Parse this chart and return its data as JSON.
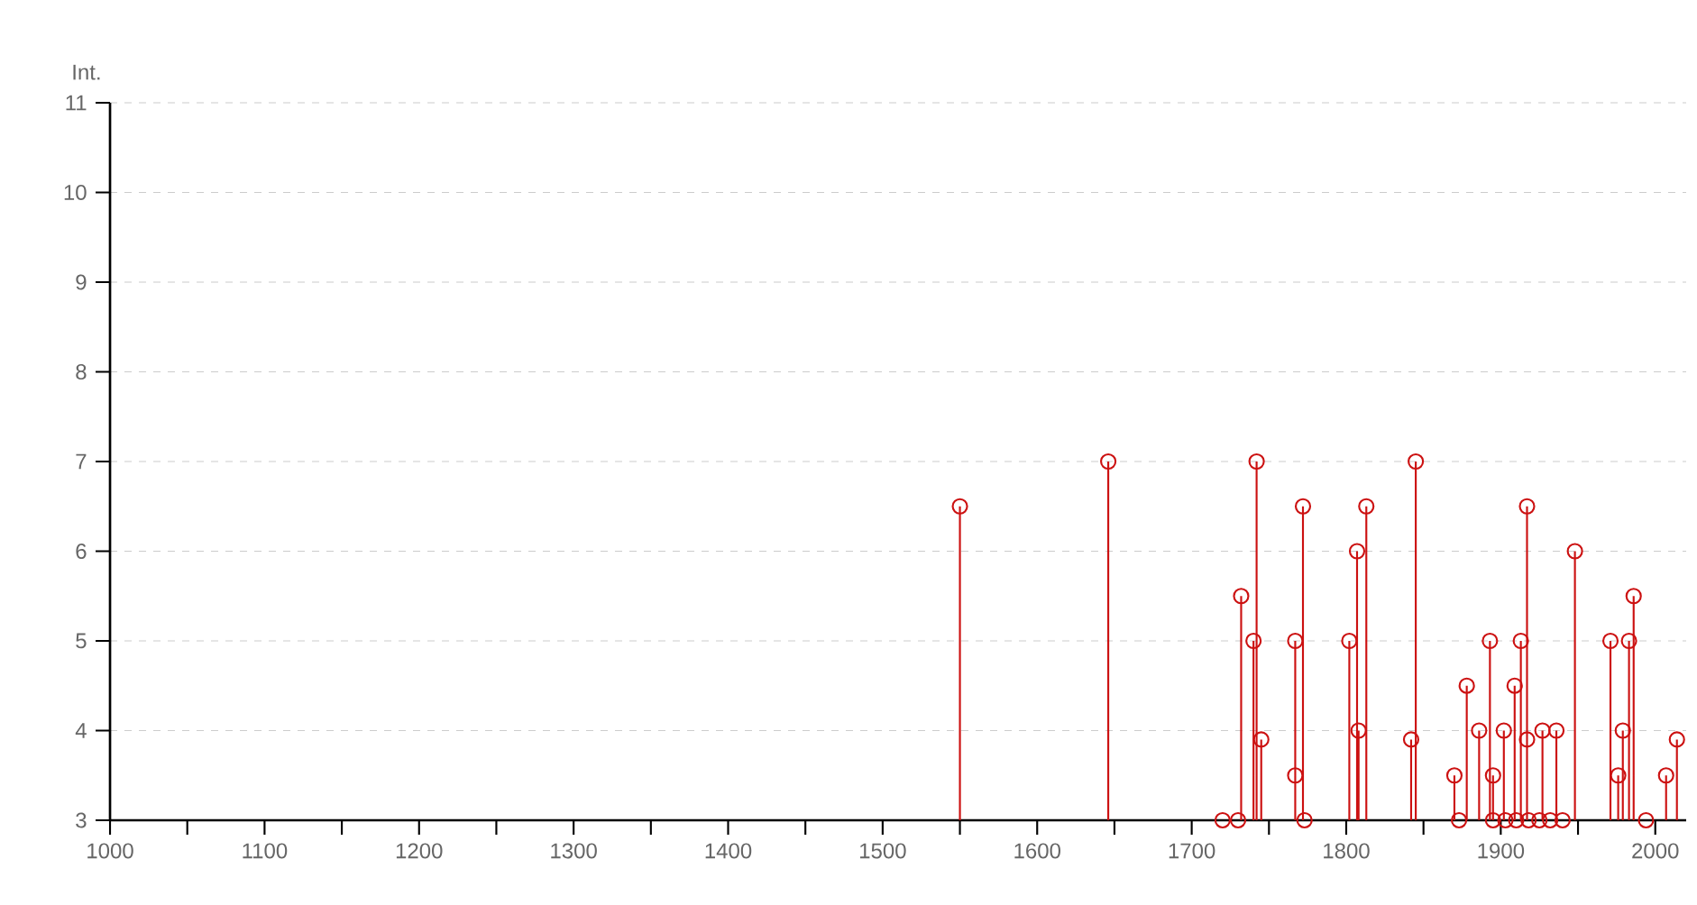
{
  "chart_data": {
    "type": "lollipop",
    "ylabel": "Int.",
    "x": [
      1550,
      1646,
      1720,
      1730,
      1732,
      1740,
      1742,
      1745,
      1767,
      1767,
      1772,
      1773,
      1802,
      1807,
      1808,
      1813,
      1842,
      1845,
      1870,
      1873,
      1878,
      1886,
      1893,
      1895,
      1895,
      1902,
      1903,
      1909,
      1910,
      1913,
      1917,
      1917,
      1918,
      1925,
      1927,
      1932,
      1936,
      1940,
      1948,
      1971,
      1976,
      1979,
      1983,
      1986,
      1994,
      2007,
      2014
    ],
    "values": [
      6.5,
      7,
      3,
      3,
      5.5,
      5,
      7,
      3.9,
      5,
      3.5,
      6.5,
      3,
      5,
      6,
      4,
      6.5,
      3.9,
      7,
      3.5,
      3,
      4.5,
      4,
      5,
      3.5,
      3,
      4,
      3,
      4.5,
      3,
      5,
      6.5,
      3.9,
      3,
      3,
      4,
      3,
      4,
      3,
      6,
      5,
      3.5,
      4,
      5,
      5.5,
      3,
      3.5,
      3.9
    ],
    "color": "#cc1111",
    "marker": "circle",
    "grid": "y",
    "xlim": [
      1000,
      2020
    ],
    "ylim": [
      3,
      11
    ],
    "xticks": [
      1000,
      {
        "value": 1050,
        "label": null
      },
      1100,
      {
        "value": 1150,
        "label": null
      },
      1200,
      {
        "value": 1250,
        "label": null
      },
      1300,
      {
        "value": 1350,
        "label": null
      },
      1400,
      {
        "value": 1450,
        "label": null
      },
      1500,
      {
        "value": 1550,
        "label": null
      },
      1600,
      {
        "value": 1650,
        "label": null
      },
      1700,
      {
        "value": 1750,
        "label": null
      },
      1800,
      {
        "value": 1850,
        "label": null
      },
      1900,
      {
        "value": 1950,
        "label": null
      },
      2000
    ],
    "yticks": [
      3,
      4,
      5,
      6,
      7,
      8,
      9,
      10,
      11
    ]
  }
}
